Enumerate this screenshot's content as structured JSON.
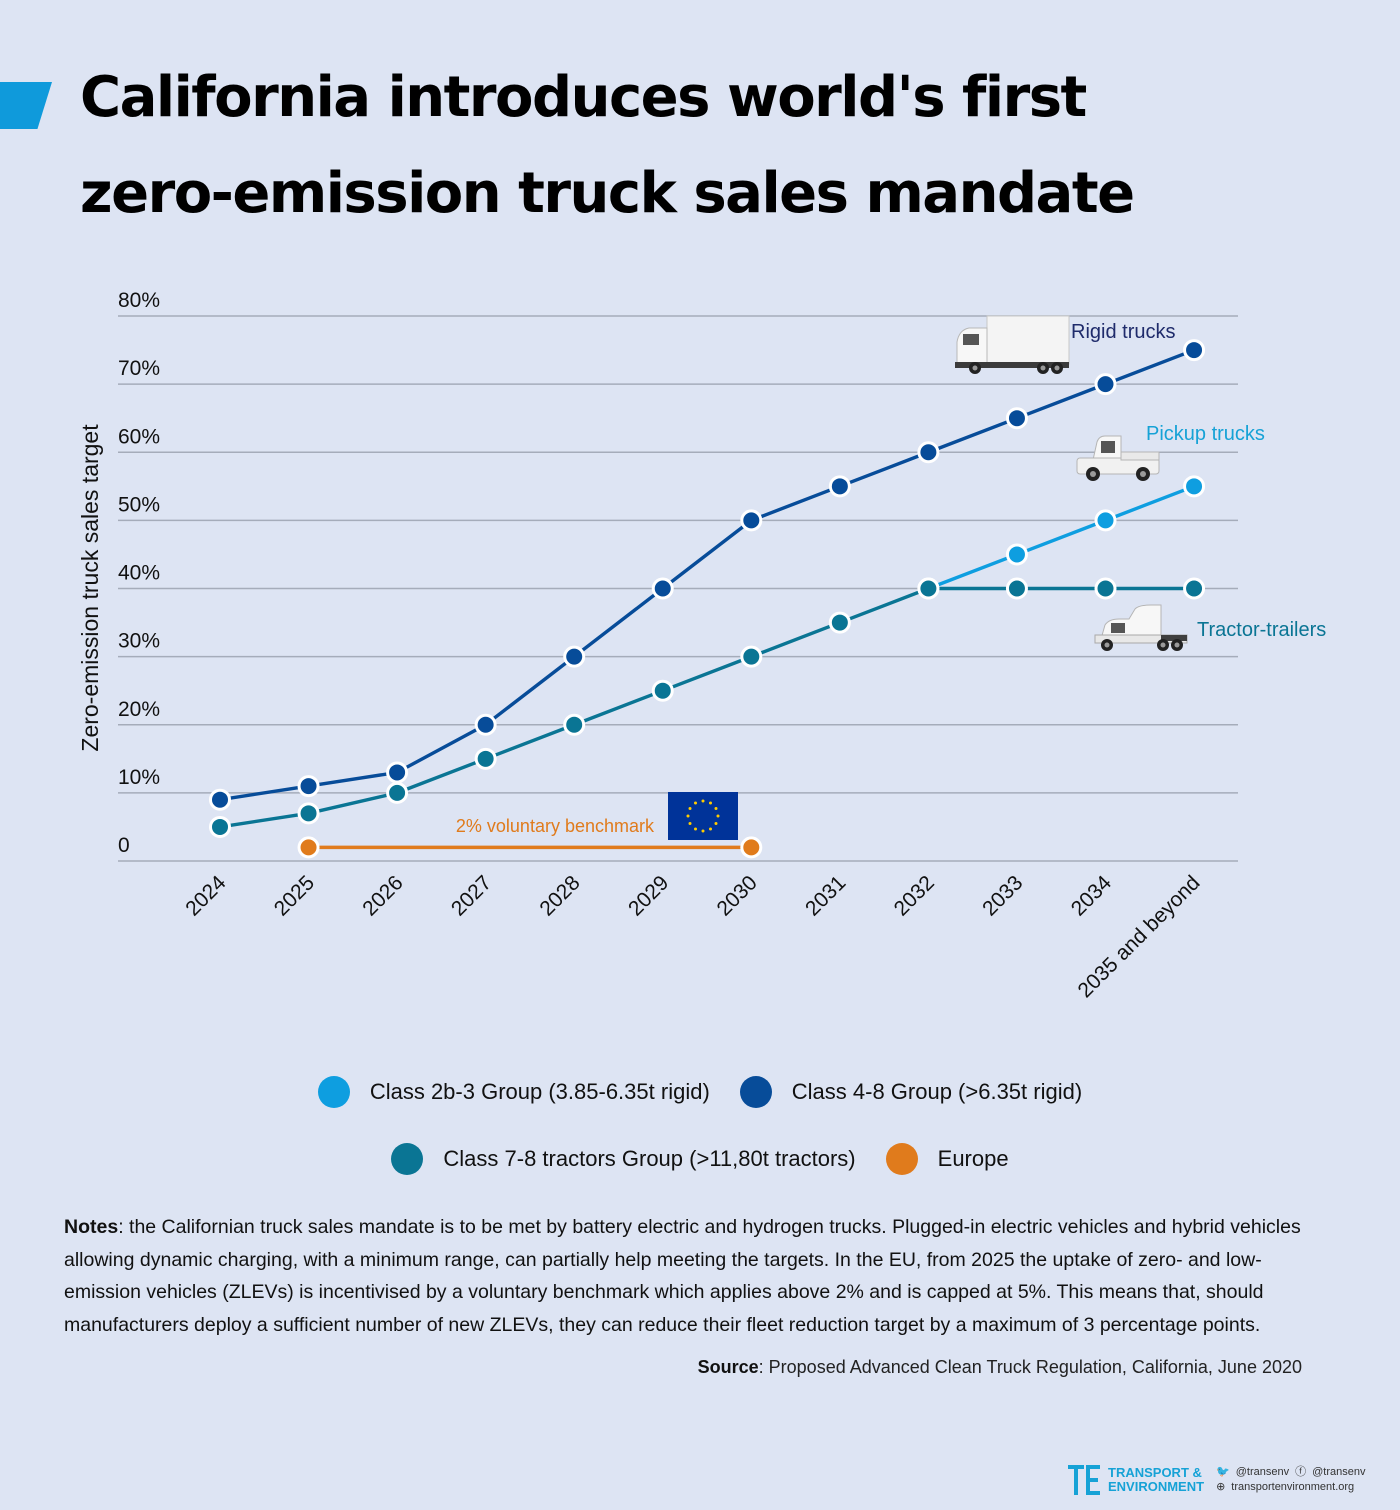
{
  "title_lines": [
    "California introduces world's first",
    "zero-emission truck sales mandate"
  ],
  "colors": {
    "class_2b3": "#0e9ee0",
    "class_48": "#074c99",
    "class_78": "#0a7594",
    "europe": "#e07b1c",
    "accent": "#0f9adb"
  },
  "chart_data": {
    "type": "line",
    "ylabel": "Zero-emission truck sales target",
    "ylim": [
      0,
      80
    ],
    "yticks": [
      0,
      10,
      20,
      30,
      40,
      50,
      60,
      70,
      80
    ],
    "ytick_labels": [
      "0",
      "10%",
      "20%",
      "30%",
      "40%",
      "50%",
      "60%",
      "70%",
      "80%"
    ],
    "categories": [
      "2024",
      "2025",
      "2026",
      "2027",
      "2028",
      "2029",
      "2030",
      "2031",
      "2032",
      "2033",
      "2034",
      "2035 and beyond"
    ],
    "grid": true,
    "legend_position": "bottom",
    "series": [
      {
        "name": "Class 2b-3 Group (3.85-6.35t rigid)",
        "color": "#0e9ee0",
        "values": [
          null,
          null,
          null,
          null,
          null,
          null,
          null,
          null,
          40,
          45,
          50,
          55
        ]
      },
      {
        "name": "Class 4-8 Group (>6.35t rigid)",
        "color": "#074c99",
        "values": [
          9,
          11,
          13,
          20,
          30,
          40,
          50,
          55,
          60,
          65,
          70,
          75
        ]
      },
      {
        "name": "Class 7-8 tractors Group (>11,80t tractors)",
        "color": "#0a7594",
        "values": [
          5,
          7,
          10,
          15,
          20,
          25,
          30,
          35,
          40,
          40,
          40,
          40
        ]
      },
      {
        "name": "Europe",
        "color": "#e07b1c",
        "values": [
          null,
          2,
          null,
          null,
          null,
          null,
          2,
          null,
          null,
          null,
          null,
          null
        ]
      }
    ],
    "annotations": [
      {
        "text": "Rigid trucks",
        "color": "#1f2b6b",
        "icon": "rigid-truck-icon"
      },
      {
        "text": "Pickup trucks",
        "color": "#16a2d6",
        "icon": "pickup-truck-icon"
      },
      {
        "text": "Tractor-trailers",
        "color": "#0a7594",
        "icon": "tractor-trailer-icon"
      },
      {
        "text": "2% voluntary benchmark",
        "color": "#e07b1c",
        "icon": "eu-flag-icon"
      }
    ]
  },
  "legend": [
    [
      {
        "label": "Class 2b-3 Group (3.85-6.35t rigid)",
        "color": "#0e9ee0"
      },
      {
        "label": "Class 4-8 Group (>6.35t rigid)",
        "color": "#074c99"
      }
    ],
    [
      {
        "label": "Class 7-8 tractors Group (>11,80t tractors)",
        "color": "#0a7594"
      },
      {
        "label": "Europe",
        "color": "#e07b1c"
      }
    ]
  ],
  "notes": {
    "label": "Notes",
    "text": ": the Californian truck sales mandate is to be met by battery electric and hydrogen trucks. Plugged-in electric vehicles and hybrid vehicles allowing dynamic charging, with a minimum range, can partially help meeting the targets.  In the EU, from 2025 the uptake of zero- and low-emission vehicles (ZLEVs) is incentivised by a voluntary benchmark which applies above 2% and is capped at 5%. This means that, should manufacturers deploy a sufficient number of new ZLEVs, they can reduce their fleet reduction target by a maximum of 3 percentage points."
  },
  "source": {
    "label": "Source",
    "text": ": Proposed Advanced Clean Truck Regulation, California, June 2020"
  },
  "footer": {
    "org_line1": "TRANSPORT &",
    "org_line2": "ENVIRONMENT",
    "twitter": "@transenv",
    "facebook": "@transenv",
    "website": "transportenvironment.org"
  }
}
